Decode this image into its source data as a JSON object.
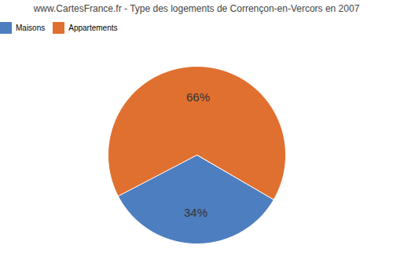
{
  "chart_data": {
    "type": "pie",
    "title": "www.CartesFrance.fr - Type des logements de Corrençon-en-Vercors en 2007",
    "categories": [
      "Maisons",
      "Appartements"
    ],
    "values": [
      34,
      66
    ],
    "value_labels": [
      "34%",
      "66%"
    ],
    "colors": [
      "#4d7ebf",
      "#e07030"
    ],
    "data_labels": true,
    "legend": "upper center"
  }
}
